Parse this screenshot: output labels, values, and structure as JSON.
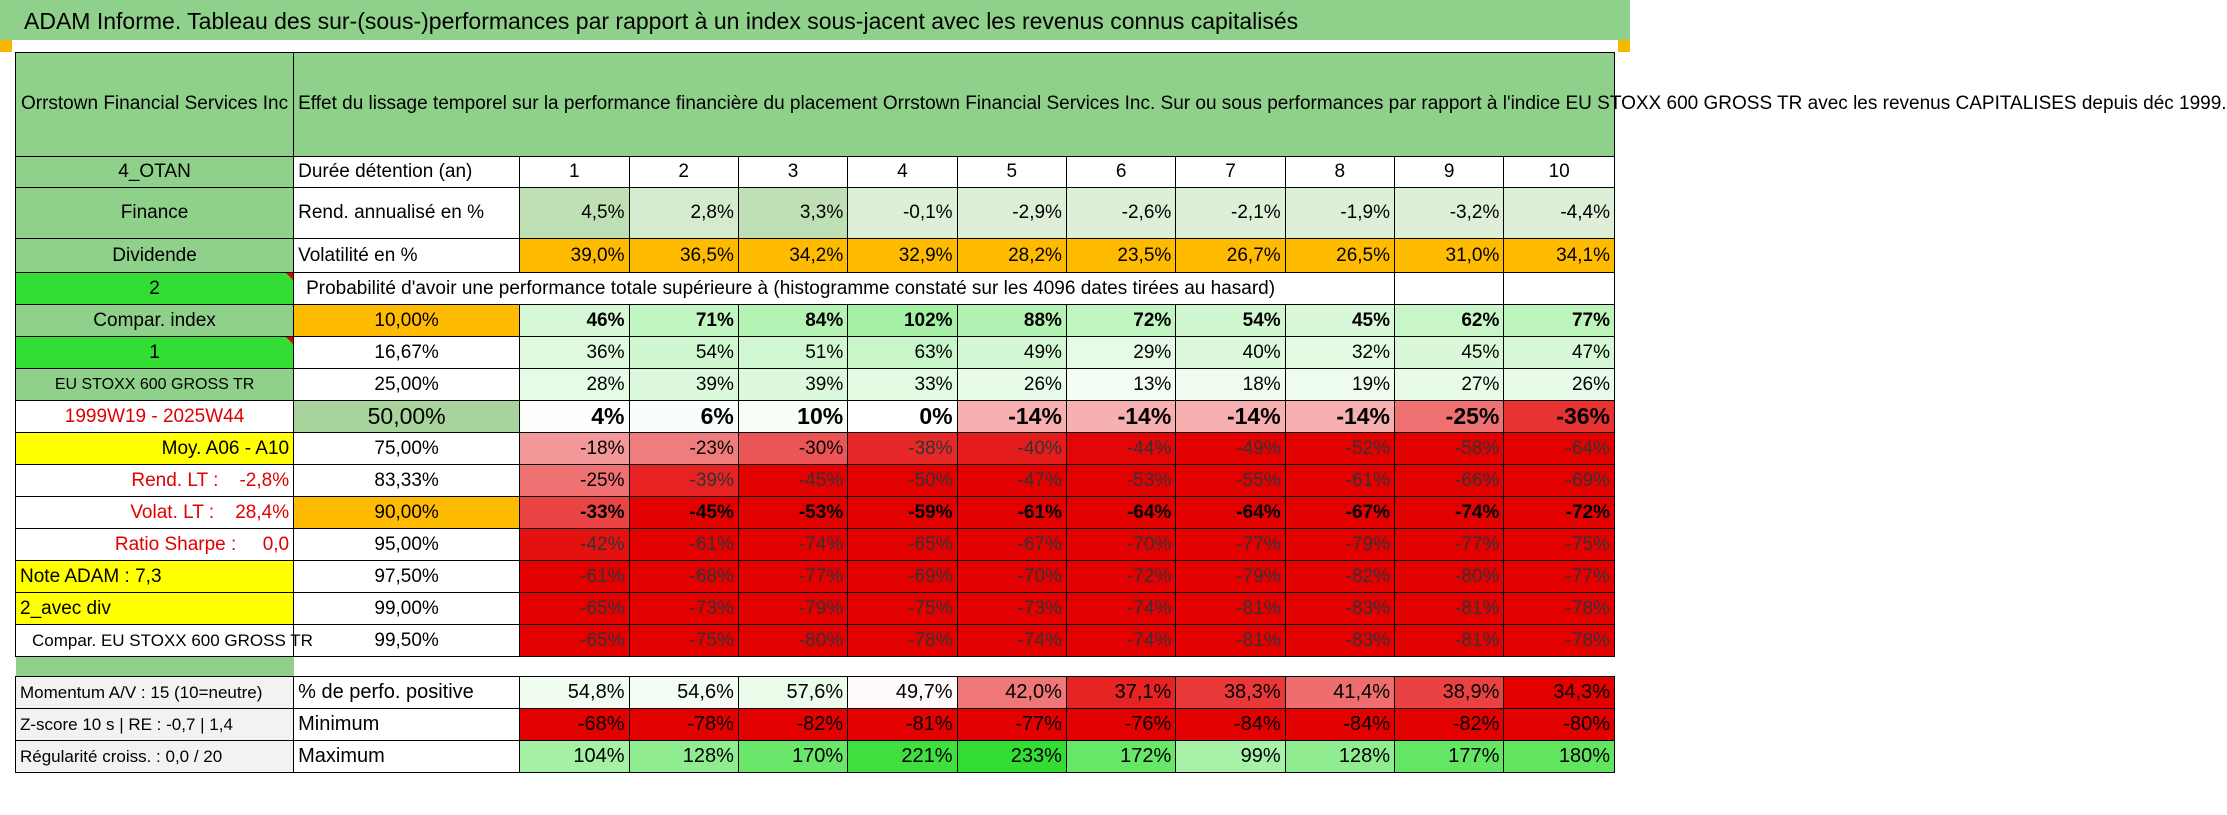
{
  "header": {
    "title": "ADAM Informe. Tableau des sur-(sous-)performances par rapport à un index sous-jacent avec les revenus connus capitalisés"
  },
  "table": {
    "fund_name": "Orrstown Financial Services Inc",
    "description": "Effet du lissage temporel sur la performance financière du placement Orrstown Financial Services Inc. Sur ou sous performances par rapport à l'indice EU STOXX 600 GROSS TR avec les revenus CAPITALISES depuis déc 1999.",
    "side_labels": [
      "4_OTAN",
      "Finance",
      "Dividende",
      "2",
      "Compar. index",
      "1",
      "EU STOXX 600 GROSS TR",
      "1999W19 - 2025W44",
      "Moy. A06 - A10",
      "Rend. LT :    -2,8%",
      "Volat. LT :    28,4%",
      "Ratio Sharpe :     0,0",
      "Note ADAM : 7,3",
      "2_avec div",
      "Compar. EU STOXX 600 GROSS TR"
    ],
    "row_labels": {
      "duration": "Durée détention (an)",
      "return": "Rend. annualisé en %",
      "volatility": "Volatilité en %",
      "probability_title": "Probabilité d'avoir une performance totale supérieure à (histogramme constaté sur les 4096 dates tirées au hasard)"
    },
    "years": [
      "1",
      "2",
      "3",
      "4",
      "5",
      "6",
      "7",
      "8",
      "9",
      "10"
    ],
    "returns": [
      "4,5%",
      "2,8%",
      "3,3%",
      "-0,1%",
      "-2,9%",
      "-2,6%",
      "-2,1%",
      "-1,9%",
      "-3,2%",
      "-4,4%"
    ],
    "volatility": [
      "39,0%",
      "36,5%",
      "34,2%",
      "32,9%",
      "28,2%",
      "23,5%",
      "26,7%",
      "26,5%",
      "31,0%",
      "34,1%"
    ],
    "percentiles": [
      {
        "label": "10,00%",
        "values": [
          "46%",
          "71%",
          "84%",
          "102%",
          "88%",
          "72%",
          "54%",
          "45%",
          "62%",
          "77%"
        ]
      },
      {
        "label": "16,67%",
        "values": [
          "36%",
          "54%",
          "51%",
          "63%",
          "49%",
          "29%",
          "40%",
          "32%",
          "45%",
          "47%"
        ]
      },
      {
        "label": "25,00%",
        "values": [
          "28%",
          "39%",
          "39%",
          "33%",
          "26%",
          "13%",
          "18%",
          "19%",
          "27%",
          "26%"
        ]
      },
      {
        "label": "50,00%",
        "values": [
          "4%",
          "6%",
          "10%",
          "0%",
          "-14%",
          "-14%",
          "-14%",
          "-14%",
          "-25%",
          "-36%"
        ]
      },
      {
        "label": "75,00%",
        "values": [
          "-18%",
          "-23%",
          "-30%",
          "-38%",
          "-40%",
          "-44%",
          "-49%",
          "-52%",
          "-58%",
          "-64%"
        ]
      },
      {
        "label": "83,33%",
        "values": [
          "-25%",
          "-39%",
          "-45%",
          "-50%",
          "-47%",
          "-53%",
          "-55%",
          "-61%",
          "-66%",
          "-69%"
        ]
      },
      {
        "label": "90,00%",
        "values": [
          "-33%",
          "-45%",
          "-53%",
          "-59%",
          "-61%",
          "-64%",
          "-64%",
          "-67%",
          "-74%",
          "-72%"
        ]
      },
      {
        "label": "95,00%",
        "values": [
          "-42%",
          "-61%",
          "-74%",
          "-65%",
          "-67%",
          "-70%",
          "-77%",
          "-79%",
          "-77%",
          "-75%"
        ]
      },
      {
        "label": "97,50%",
        "values": [
          "-61%",
          "-68%",
          "-77%",
          "-69%",
          "-70%",
          "-72%",
          "-79%",
          "-82%",
          "-80%",
          "-77%"
        ]
      },
      {
        "label": "99,00%",
        "values": [
          "-65%",
          "-73%",
          "-79%",
          "-75%",
          "-73%",
          "-74%",
          "-81%",
          "-83%",
          "-81%",
          "-78%"
        ]
      },
      {
        "label": "99,50%",
        "values": [
          "-65%",
          "-75%",
          "-80%",
          "-78%",
          "-74%",
          "-74%",
          "-81%",
          "-83%",
          "-81%",
          "-78%"
        ]
      }
    ],
    "stats": [
      {
        "side": "Momentum A/V : 15 (10=neutre)",
        "label": "% de perfo. positive",
        "values": [
          "54,8%",
          "54,6%",
          "57,6%",
          "49,7%",
          "42,0%",
          "37,1%",
          "38,3%",
          "41,4%",
          "38,9%",
          "34,3%"
        ]
      },
      {
        "side": "Z-score 10 s | RE : -0,7 | 1,4",
        "label": "Minimum",
        "values": [
          "-68%",
          "-78%",
          "-82%",
          "-81%",
          "-77%",
          "-76%",
          "-84%",
          "-84%",
          "-82%",
          "-80%"
        ]
      },
      {
        "side": "Régularité croiss. : 0,0 / 20",
        "label": "Maximum",
        "values": [
          "104%",
          "128%",
          "170%",
          "221%",
          "233%",
          "172%",
          "99%",
          "128%",
          "177%",
          "180%"
        ]
      }
    ]
  },
  "colors": {
    "header_green": "#8fd18a",
    "bright_green": "#33dd33",
    "yellow": "#ffff00",
    "orange": "#ffbb00",
    "red": "#e00000"
  }
}
